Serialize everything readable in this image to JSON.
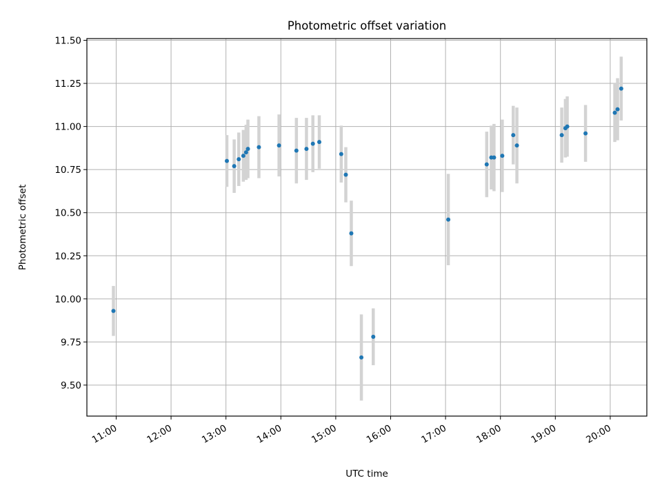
{
  "chart_data": {
    "type": "scatter",
    "title": "Photometric offset variation",
    "xlabel": "UTC time",
    "ylabel": "Photometric offset",
    "x_ticks": [
      "11:00",
      "12:00",
      "13:00",
      "14:00",
      "15:00",
      "16:00",
      "17:00",
      "18:00",
      "19:00",
      "20:00"
    ],
    "y_ticks": [
      "9.50",
      "9.75",
      "10.00",
      "10.25",
      "10.50",
      "10.75",
      "11.00",
      "11.25",
      "11.50"
    ],
    "xlim": [
      "10:28",
      "20:40"
    ],
    "ylim": [
      9.32,
      11.51
    ],
    "grid": true,
    "colors": {
      "points": "#1f77b4",
      "errorbars": "#d3d3d3"
    },
    "series": [
      {
        "points": [
          {
            "x": "10:57",
            "y": 9.93,
            "yerr": 0.145
          },
          {
            "x": "13:01",
            "y": 10.8,
            "yerr": 0.15
          },
          {
            "x": "13:09",
            "y": 10.77,
            "yerr": 0.155
          },
          {
            "x": "13:14",
            "y": 10.81,
            "yerr": 0.155
          },
          {
            "x": "13:19",
            "y": 10.83,
            "yerr": 0.15
          },
          {
            "x": "13:22",
            "y": 10.85,
            "yerr": 0.16
          },
          {
            "x": "13:24",
            "y": 10.87,
            "yerr": 0.17
          },
          {
            "x": "13:36",
            "y": 10.88,
            "yerr": 0.18
          },
          {
            "x": "13:58",
            "y": 10.89,
            "yerr": 0.18
          },
          {
            "x": "14:17",
            "y": 10.86,
            "yerr": 0.19
          },
          {
            "x": "14:28",
            "y": 10.87,
            "yerr": 0.18
          },
          {
            "x": "14:35",
            "y": 10.9,
            "yerr": 0.165
          },
          {
            "x": "14:42",
            "y": 10.91,
            "yerr": 0.155
          },
          {
            "x": "15:06",
            "y": 10.84,
            "yerr": 0.165
          },
          {
            "x": "15:11",
            "y": 10.72,
            "yerr": 0.16
          },
          {
            "x": "15:17",
            "y": 10.38,
            "yerr": 0.19
          },
          {
            "x": "15:28",
            "y": 9.66,
            "yerr": 0.25
          },
          {
            "x": "15:41",
            "y": 9.78,
            "yerr": 0.165
          },
          {
            "x": "17:03",
            "y": 10.46,
            "yerr": 0.265
          },
          {
            "x": "17:45",
            "y": 10.78,
            "yerr": 0.19
          },
          {
            "x": "17:50",
            "y": 10.82,
            "yerr": 0.185
          },
          {
            "x": "17:53",
            "y": 10.82,
            "yerr": 0.195
          },
          {
            "x": "18:02",
            "y": 10.83,
            "yerr": 0.21
          },
          {
            "x": "18:14",
            "y": 10.95,
            "yerr": 0.17
          },
          {
            "x": "18:18",
            "y": 10.89,
            "yerr": 0.22
          },
          {
            "x": "19:07",
            "y": 10.95,
            "yerr": 0.16
          },
          {
            "x": "19:11",
            "y": 10.99,
            "yerr": 0.17
          },
          {
            "x": "19:13",
            "y": 11.0,
            "yerr": 0.175
          },
          {
            "x": "19:33",
            "y": 10.96,
            "yerr": 0.165
          },
          {
            "x": "20:05",
            "y": 11.08,
            "yerr": 0.17
          },
          {
            "x": "20:08",
            "y": 11.1,
            "yerr": 0.18
          },
          {
            "x": "20:12",
            "y": 11.22,
            "yerr": 0.185
          }
        ]
      }
    ]
  }
}
